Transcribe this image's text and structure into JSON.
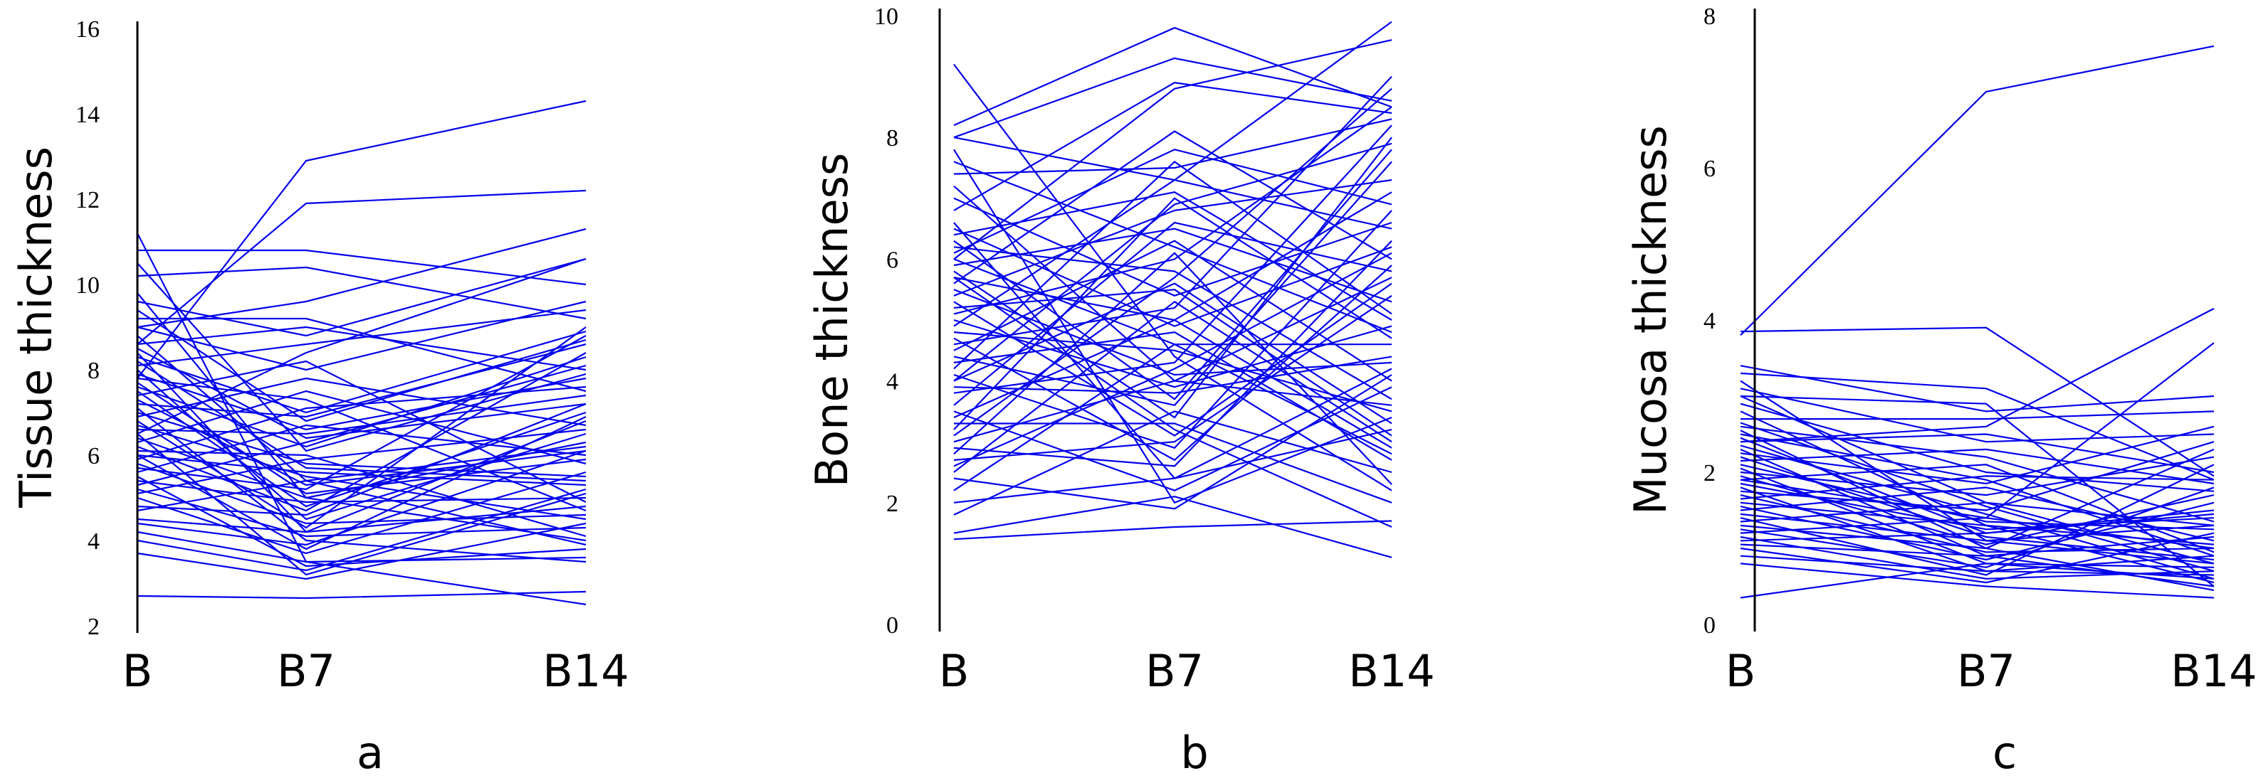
{
  "colors": {
    "series": "#0000ee",
    "axis": "#000000"
  },
  "chart_data": [
    {
      "type": "line",
      "panel_label": "a",
      "ylabel": "Tissue thickness",
      "categories": [
        "B",
        "B7",
        "B14"
      ],
      "ylim": [
        2,
        16
      ],
      "yticks": [
        2,
        4,
        6,
        8,
        10,
        12,
        14,
        16
      ],
      "series": [
        {
          "values": [
            2.7,
            2.65,
            2.8
          ]
        },
        {
          "values": [
            3.7,
            3.1,
            4.4
          ]
        },
        {
          "values": [
            4.0,
            3.3,
            5.2
          ]
        },
        {
          "values": [
            4.2,
            3.5,
            3.6
          ]
        },
        {
          "values": [
            4.4,
            3.9,
            6.1
          ]
        },
        {
          "values": [
            4.5,
            4.2,
            4.8
          ]
        },
        {
          "values": [
            4.7,
            5.4,
            3.9
          ]
        },
        {
          "values": [
            4.8,
            4.6,
            7.2
          ]
        },
        {
          "values": [
            5.0,
            3.7,
            5.6
          ]
        },
        {
          "values": [
            5.1,
            5.9,
            6.6
          ]
        },
        {
          "values": [
            5.2,
            4.1,
            4.3
          ]
        },
        {
          "values": [
            5.3,
            6.3,
            8.1
          ]
        },
        {
          "values": [
            5.4,
            4.9,
            5.0
          ]
        },
        {
          "values": [
            5.5,
            3.4,
            3.8
          ]
        },
        {
          "values": [
            5.6,
            6.7,
            6.0
          ]
        },
        {
          "values": [
            5.7,
            5.2,
            8.8
          ]
        },
        {
          "values": [
            5.8,
            4.4,
            4.6
          ]
        },
        {
          "values": [
            5.9,
            7.1,
            7.6
          ]
        },
        {
          "values": [
            6.0,
            5.6,
            5.3
          ]
        },
        {
          "values": [
            6.0,
            3.8,
            6.9
          ]
        },
        {
          "values": [
            6.1,
            6.0,
            4.1
          ]
        },
        {
          "values": [
            6.2,
            4.7,
            8.4
          ]
        },
        {
          "values": [
            6.3,
            7.5,
            5.8
          ]
        },
        {
          "values": [
            6.4,
            5.0,
            6.3
          ]
        },
        {
          "values": [
            6.5,
            3.2,
            5.1
          ]
        },
        {
          "values": [
            6.6,
            6.5,
            7.4
          ]
        },
        {
          "values": [
            6.7,
            5.5,
            4.5
          ]
        },
        {
          "values": [
            6.8,
            4.3,
            9.0
          ]
        },
        {
          "values": [
            6.9,
            7.8,
            6.7
          ]
        },
        {
          "values": [
            7.0,
            5.8,
            5.5
          ]
        },
        {
          "values": [
            7.1,
            4.0,
            3.5
          ]
        },
        {
          "values": [
            7.2,
            6.9,
            8.6
          ]
        },
        {
          "values": [
            7.3,
            5.3,
            6.1
          ]
        },
        {
          "values": [
            7.4,
            8.2,
            4.9
          ]
        },
        {
          "values": [
            7.5,
            4.8,
            7.0
          ]
        },
        {
          "values": [
            7.6,
            6.2,
            8.3
          ]
        },
        {
          "values": [
            7.7,
            5.1,
            5.9
          ]
        },
        {
          "values": [
            7.8,
            7.3,
            4.7
          ]
        },
        {
          "values": [
            7.9,
            6.6,
            7.8
          ]
        },
        {
          "values": [
            8.0,
            4.5,
            6.5
          ]
        },
        {
          "values": [
            8.1,
            8.6,
            9.4
          ]
        },
        {
          "values": [
            8.2,
            5.7,
            5.4
          ]
        },
        {
          "values": [
            8.3,
            7.0,
            8.9
          ]
        },
        {
          "values": [
            8.4,
            4.2,
            6.8
          ]
        },
        {
          "values": [
            8.5,
            6.4,
            7.2
          ]
        },
        {
          "values": [
            8.6,
            9.0,
            8.0
          ]
        },
        {
          "values": [
            8.8,
            5.4,
            6.2
          ]
        },
        {
          "values": [
            9.0,
            8.0,
            9.6
          ]
        },
        {
          "values": [
            9.2,
            9.2,
            7.5
          ]
        },
        {
          "values": [
            9.4,
            6.8,
            8.7
          ]
        },
        {
          "values": [
            9.6,
            8.8,
            10.6
          ]
        },
        {
          "values": [
            9.8,
            5.0,
            4.0
          ]
        },
        {
          "values": [
            10.2,
            10.4,
            9.2
          ]
        },
        {
          "values": [
            10.5,
            6.1,
            7.9
          ]
        },
        {
          "values": [
            10.8,
            10.8,
            10.0
          ]
        },
        {
          "values": [
            11.2,
            3.5,
            2.5
          ]
        },
        {
          "values": [
            7.8,
            12.9,
            14.3
          ]
        },
        {
          "values": [
            8.6,
            11.9,
            12.2
          ]
        },
        {
          "values": [
            9.0,
            9.6,
            11.3
          ]
        },
        {
          "values": [
            6.5,
            8.4,
            10.6
          ]
        }
      ]
    },
    {
      "type": "line",
      "panel_label": "b",
      "ylabel": "Bone thickness",
      "categories": [
        "B",
        "B7",
        "B14"
      ],
      "ylim": [
        0,
        10
      ],
      "yticks": [
        0,
        2,
        4,
        6,
        8,
        10
      ],
      "series": [
        {
          "values": [
            1.4,
            1.6,
            1.7
          ]
        },
        {
          "values": [
            1.5,
            2.1,
            1.1
          ]
        },
        {
          "values": [
            1.8,
            3.5,
            2.5
          ]
        },
        {
          "values": [
            2.0,
            2.4,
            3.2
          ]
        },
        {
          "values": [
            2.2,
            4.6,
            2.8
          ]
        },
        {
          "values": [
            2.4,
            1.9,
            4.1
          ]
        },
        {
          "values": [
            2.5,
            5.3,
            3.0
          ]
        },
        {
          "values": [
            2.7,
            3.0,
            5.4
          ]
        },
        {
          "values": [
            2.8,
            6.1,
            2.3
          ]
        },
        {
          "values": [
            2.9,
            2.6,
            6.3
          ]
        },
        {
          "values": [
            3.0,
            4.0,
            3.6
          ]
        },
        {
          "values": [
            3.2,
            7.0,
            4.7
          ]
        },
        {
          "values": [
            3.3,
            3.3,
            2.0
          ]
        },
        {
          "values": [
            3.4,
            5.0,
            7.1
          ]
        },
        {
          "values": [
            3.5,
            2.2,
            3.9
          ]
        },
        {
          "values": [
            3.6,
            6.6,
            5.8
          ]
        },
        {
          "values": [
            3.8,
            4.3,
            8.2
          ]
        },
        {
          "values": [
            3.9,
            3.8,
            4.4
          ]
        },
        {
          "values": [
            4.0,
            5.6,
            3.3
          ]
        },
        {
          "values": [
            4.1,
            2.9,
            6.8
          ]
        },
        {
          "values": [
            4.2,
            7.6,
            5.1
          ]
        },
        {
          "values": [
            4.3,
            4.8,
            2.7
          ]
        },
        {
          "values": [
            4.4,
            3.6,
            7.6
          ]
        },
        {
          "values": [
            4.5,
            6.3,
            4.0
          ]
        },
        {
          "values": [
            4.6,
            5.2,
            9.0
          ]
        },
        {
          "values": [
            4.7,
            2.7,
            5.9
          ]
        },
        {
          "values": [
            4.8,
            4.5,
            3.5
          ]
        },
        {
          "values": [
            4.9,
            7.3,
            6.5
          ]
        },
        {
          "values": [
            5.0,
            3.9,
            4.9
          ]
        },
        {
          "values": [
            5.1,
            6.0,
            8.5
          ]
        },
        {
          "values": [
            5.2,
            5.5,
            3.1
          ]
        },
        {
          "values": [
            5.3,
            3.1,
            5.6
          ]
        },
        {
          "values": [
            5.4,
            6.8,
            7.3
          ]
        },
        {
          "values": [
            5.5,
            4.1,
            4.3
          ]
        },
        {
          "values": [
            5.6,
            8.1,
            6.0
          ]
        },
        {
          "values": [
            5.7,
            5.0,
            2.9
          ]
        },
        {
          "values": [
            5.8,
            3.4,
            8.0
          ]
        },
        {
          "values": [
            5.9,
            6.5,
            5.3
          ]
        },
        {
          "values": [
            6.0,
            4.6,
            4.6
          ]
        },
        {
          "values": [
            6.1,
            7.8,
            6.9
          ]
        },
        {
          "values": [
            6.2,
            5.8,
            3.7
          ]
        },
        {
          "values": [
            6.3,
            3.7,
            7.8
          ]
        },
        {
          "values": [
            6.4,
            7.1,
            5.0
          ]
        },
        {
          "values": [
            6.5,
            4.9,
            6.2
          ]
        },
        {
          "values": [
            6.6,
            2.4,
            4.2
          ]
        },
        {
          "values": [
            6.8,
            8.9,
            8.4
          ]
        },
        {
          "values": [
            7.0,
            5.4,
            6.6
          ]
        },
        {
          "values": [
            7.2,
            4.0,
            5.7
          ]
        },
        {
          "values": [
            7.4,
            7.5,
            8.3
          ]
        },
        {
          "values": [
            7.6,
            6.2,
            4.8
          ]
        },
        {
          "values": [
            7.8,
            2.0,
            3.4
          ]
        },
        {
          "values": [
            8.0,
            9.3,
            8.6
          ]
        },
        {
          "values": [
            8.2,
            9.8,
            8.5
          ]
        },
        {
          "values": [
            8.0,
            7.3,
            9.9
          ]
        },
        {
          "values": [
            9.2,
            4.4,
            2.2
          ]
        },
        {
          "values": [
            6.0,
            8.8,
            9.6
          ]
        },
        {
          "values": [
            4.0,
            6.9,
            7.9
          ]
        },
        {
          "values": [
            3.1,
            5.7,
            8.8
          ]
        },
        {
          "values": [
            5.7,
            3.2,
            1.6
          ]
        },
        {
          "values": [
            2.6,
            4.2,
            6.1
          ]
        }
      ]
    },
    {
      "type": "line",
      "panel_label": "c",
      "ylabel": "Mucosa thickness",
      "categories": [
        "B",
        "B7",
        "B14"
      ],
      "ylim": [
        0,
        8
      ],
      "yticks": [
        0,
        2,
        4,
        6,
        8
      ],
      "series": [
        {
          "values": [
            0.35,
            0.8,
            0.6
          ]
        },
        {
          "values": [
            0.8,
            0.5,
            0.35
          ]
        },
        {
          "values": [
            0.9,
            0.7,
            0.9
          ]
        },
        {
          "values": [
            1.0,
            0.55,
            1.2
          ]
        },
        {
          "values": [
            1.05,
            0.9,
            0.5
          ]
        },
        {
          "values": [
            1.1,
            1.2,
            1.5
          ]
        },
        {
          "values": [
            1.15,
            0.6,
            0.7
          ]
        },
        {
          "values": [
            1.2,
            1.4,
            1.0
          ]
        },
        {
          "values": [
            1.25,
            0.75,
            1.8
          ]
        },
        {
          "values": [
            1.3,
            1.0,
            0.45
          ]
        },
        {
          "values": [
            1.35,
            1.6,
            1.3
          ]
        },
        {
          "values": [
            1.4,
            0.65,
            2.1
          ]
        },
        {
          "values": [
            1.45,
            1.1,
            0.8
          ]
        },
        {
          "values": [
            1.5,
            1.8,
            1.1
          ]
        },
        {
          "values": [
            1.55,
            0.85,
            1.6
          ]
        },
        {
          "values": [
            1.6,
            1.3,
            0.55
          ]
        },
        {
          "values": [
            1.65,
            1.95,
            1.9
          ]
        },
        {
          "values": [
            1.7,
            0.95,
            1.0
          ]
        },
        {
          "values": [
            1.75,
            1.5,
            2.4
          ]
        },
        {
          "values": [
            1.8,
            0.7,
            0.65
          ]
        },
        {
          "values": [
            1.85,
            1.25,
            1.4
          ]
        },
        {
          "values": [
            1.9,
            2.1,
            0.95
          ]
        },
        {
          "values": [
            1.95,
            1.05,
            1.7
          ]
        },
        {
          "values": [
            2.0,
            1.7,
            2.2
          ]
        },
        {
          "values": [
            2.05,
            0.8,
            0.75
          ]
        },
        {
          "values": [
            2.1,
            1.35,
            1.25
          ]
        },
        {
          "values": [
            2.15,
            2.3,
            1.85
          ]
        },
        {
          "values": [
            2.2,
            1.15,
            0.85
          ]
        },
        {
          "values": [
            2.25,
            1.85,
            2.6
          ]
        },
        {
          "values": [
            2.3,
            0.9,
            1.15
          ]
        },
        {
          "values": [
            2.35,
            1.45,
            0.6
          ]
        },
        {
          "values": [
            2.4,
            2.5,
            2.0
          ]
        },
        {
          "values": [
            2.45,
            1.2,
            1.45
          ]
        },
        {
          "values": [
            2.5,
            1.9,
            0.9
          ]
        },
        {
          "values": [
            2.55,
            1.0,
            2.3
          ]
        },
        {
          "values": [
            2.6,
            2.2,
            1.35
          ]
        },
        {
          "values": [
            2.65,
            1.55,
            0.7
          ]
        },
        {
          "values": [
            2.7,
            2.7,
            2.8
          ]
        },
        {
          "values": [
            2.8,
            1.3,
            1.05
          ]
        },
        {
          "values": [
            2.9,
            2.0,
            1.75
          ]
        },
        {
          "values": [
            3.0,
            1.6,
            0.8
          ]
        },
        {
          "values": [
            3.1,
            2.4,
            2.5
          ]
        },
        {
          "values": [
            3.2,
            1.1,
            1.3
          ]
        },
        {
          "values": [
            3.3,
            3.1,
            1.9
          ]
        },
        {
          "values": [
            3.4,
            2.8,
            3.0
          ]
        },
        {
          "values": [
            3.85,
            3.9,
            1.95
          ]
        },
        {
          "values": [
            3.8,
            7.0,
            7.6
          ]
        },
        {
          "values": [
            2.4,
            2.6,
            4.15
          ]
        },
        {
          "values": [
            1.9,
            1.4,
            3.7
          ]
        },
        {
          "values": [
            3.0,
            2.9,
            0.5
          ]
        }
      ]
    }
  ]
}
